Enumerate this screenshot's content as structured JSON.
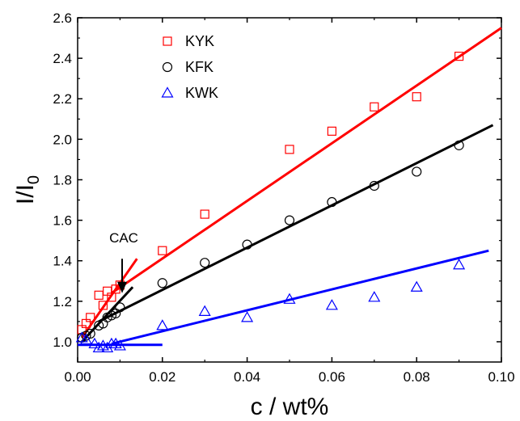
{
  "chart_data": {
    "type": "scatter",
    "xlabel": "c / wt%",
    "ylabel": "I/I",
    "ylabel_sub": "0",
    "xlim": [
      0,
      0.1
    ],
    "ylim": [
      0.9,
      2.6
    ],
    "xticks": [
      0.0,
      0.02,
      0.04,
      0.06,
      0.08,
      0.1
    ],
    "xtick_labels": [
      "0.00",
      "0.02",
      "0.04",
      "0.06",
      "0.08",
      "0.10"
    ],
    "yticks": [
      1.0,
      1.2,
      1.4,
      1.6,
      1.8,
      2.0,
      2.2,
      2.4,
      2.6
    ],
    "ytick_labels": [
      "1.0",
      "1.2",
      "1.4",
      "1.6",
      "1.8",
      "2.0",
      "2.2",
      "2.4",
      "2.6"
    ],
    "grid": false,
    "legend_position": "top-left",
    "series": [
      {
        "name": "KYK",
        "color": "#ff0000",
        "marker": "square",
        "x": [
          0.001,
          0.002,
          0.003,
          0.005,
          0.006,
          0.007,
          0.008,
          0.009,
          0.01,
          0.02,
          0.03,
          0.05,
          0.06,
          0.07,
          0.08,
          0.09
        ],
        "y": [
          1.06,
          1.09,
          1.12,
          1.23,
          1.18,
          1.25,
          1.22,
          1.26,
          1.28,
          1.45,
          1.63,
          1.95,
          2.04,
          2.16,
          2.21,
          2.41
        ],
        "fit_lines": [
          {
            "x": [
              0.001,
              0.014
            ],
            "y": [
              1.02,
              1.41
            ]
          },
          {
            "x": [
              0.008,
              0.1
            ],
            "y": [
              1.24,
              2.55
            ]
          }
        ]
      },
      {
        "name": "KFK",
        "color": "#000000",
        "marker": "circle",
        "x": [
          0.001,
          0.002,
          0.003,
          0.005,
          0.006,
          0.007,
          0.008,
          0.009,
          0.01,
          0.02,
          0.03,
          0.04,
          0.05,
          0.06,
          0.07,
          0.08,
          0.09
        ],
        "y": [
          1.02,
          1.03,
          1.04,
          1.08,
          1.09,
          1.12,
          1.13,
          1.14,
          1.17,
          1.29,
          1.39,
          1.48,
          1.6,
          1.69,
          1.77,
          1.84,
          1.97
        ],
        "fit_lines": [
          {
            "x": [
              0.001,
              0.013
            ],
            "y": [
              1.0,
              1.27
            ]
          },
          {
            "x": [
              0.005,
              0.098
            ],
            "y": [
              1.1,
              2.07
            ]
          }
        ]
      },
      {
        "name": "KWK",
        "color": "#0000ff",
        "marker": "triangle",
        "x": [
          0.001,
          0.002,
          0.004,
          0.005,
          0.006,
          0.007,
          0.008,
          0.009,
          0.01,
          0.02,
          0.03,
          0.04,
          0.05,
          0.06,
          0.07,
          0.08,
          0.09
        ],
        "y": [
          1.02,
          1.01,
          0.99,
          0.97,
          0.98,
          0.97,
          0.99,
          0.99,
          0.98,
          1.08,
          1.15,
          1.12,
          1.21,
          1.18,
          1.22,
          1.27,
          1.38
        ],
        "fit_lines": [
          {
            "x": [
              0.0,
              0.02
            ],
            "y": [
              0.985,
              0.985
            ]
          },
          {
            "x": [
              0.008,
              0.097
            ],
            "y": [
              0.99,
              1.45
            ]
          }
        ]
      }
    ],
    "annotations": [
      {
        "text": "CAC",
        "arrow_from": [
          0.0105,
          1.41
        ],
        "arrow_to": [
          0.0105,
          1.24
        ]
      }
    ]
  }
}
